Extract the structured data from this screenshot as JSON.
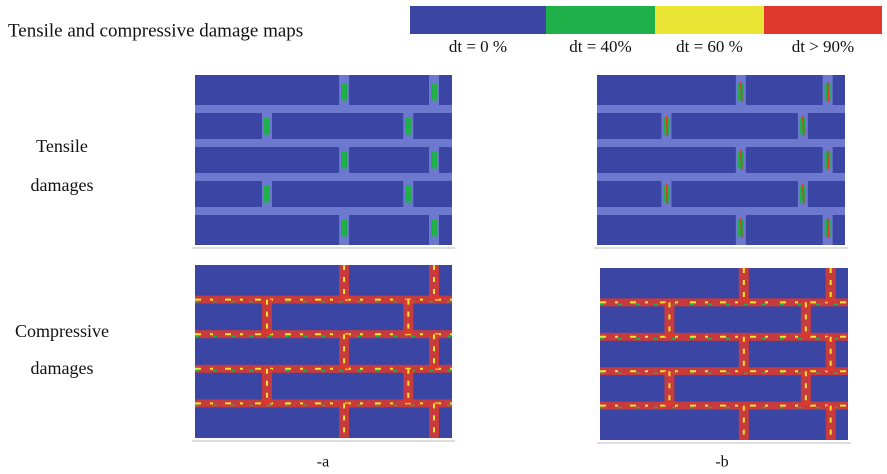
{
  "title": "Tensile and compressive damage maps",
  "legend": [
    {
      "label": "dt = 0 %",
      "color": "#3b45a3"
    },
    {
      "label": "dt = 40%",
      "color": "#1fb04a"
    },
    {
      "label": "dt = 60 %",
      "color": "#ebe636"
    },
    {
      "label": "dt > 90%",
      "color": "#e0382c"
    }
  ],
  "rows": [
    {
      "lines": [
        "Tensile",
        "damages"
      ]
    },
    {
      "lines": [
        "Compressive",
        "damages"
      ]
    }
  ],
  "panels": [
    "-a",
    "-b"
  ]
}
